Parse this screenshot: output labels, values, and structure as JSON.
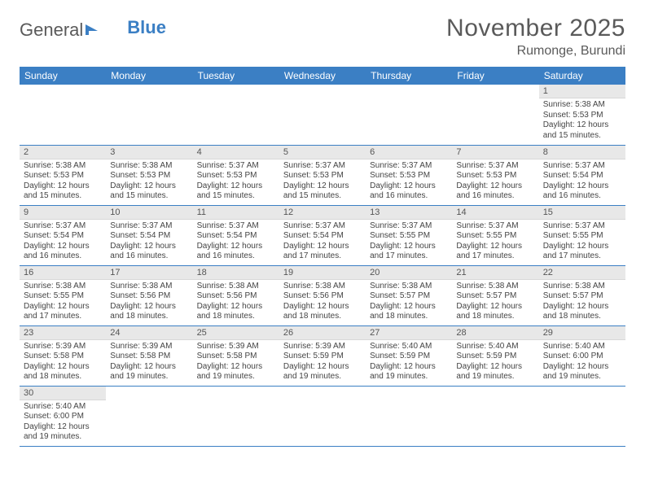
{
  "logo": {
    "text1": "General",
    "text2": "Blue"
  },
  "title": "November 2025",
  "location": "Rumonge, Burundi",
  "colors": {
    "header_bg": "#3b7fc4",
    "header_text": "#ffffff",
    "daynum_bg": "#e8e8e8",
    "border": "#3b7fc4",
    "text": "#444444",
    "title_color": "#5a5a5a"
  },
  "weekdays": [
    "Sunday",
    "Monday",
    "Tuesday",
    "Wednesday",
    "Thursday",
    "Friday",
    "Saturday"
  ],
  "weeks": [
    [
      null,
      null,
      null,
      null,
      null,
      null,
      {
        "n": "1",
        "sr": "5:38 AM",
        "ss": "5:53 PM",
        "dl": "12 hours and 15 minutes."
      }
    ],
    [
      {
        "n": "2",
        "sr": "5:38 AM",
        "ss": "5:53 PM",
        "dl": "12 hours and 15 minutes."
      },
      {
        "n": "3",
        "sr": "5:38 AM",
        "ss": "5:53 PM",
        "dl": "12 hours and 15 minutes."
      },
      {
        "n": "4",
        "sr": "5:37 AM",
        "ss": "5:53 PM",
        "dl": "12 hours and 15 minutes."
      },
      {
        "n": "5",
        "sr": "5:37 AM",
        "ss": "5:53 PM",
        "dl": "12 hours and 15 minutes."
      },
      {
        "n": "6",
        "sr": "5:37 AM",
        "ss": "5:53 PM",
        "dl": "12 hours and 16 minutes."
      },
      {
        "n": "7",
        "sr": "5:37 AM",
        "ss": "5:53 PM",
        "dl": "12 hours and 16 minutes."
      },
      {
        "n": "8",
        "sr": "5:37 AM",
        "ss": "5:54 PM",
        "dl": "12 hours and 16 minutes."
      }
    ],
    [
      {
        "n": "9",
        "sr": "5:37 AM",
        "ss": "5:54 PM",
        "dl": "12 hours and 16 minutes."
      },
      {
        "n": "10",
        "sr": "5:37 AM",
        "ss": "5:54 PM",
        "dl": "12 hours and 16 minutes."
      },
      {
        "n": "11",
        "sr": "5:37 AM",
        "ss": "5:54 PM",
        "dl": "12 hours and 16 minutes."
      },
      {
        "n": "12",
        "sr": "5:37 AM",
        "ss": "5:54 PM",
        "dl": "12 hours and 17 minutes."
      },
      {
        "n": "13",
        "sr": "5:37 AM",
        "ss": "5:55 PM",
        "dl": "12 hours and 17 minutes."
      },
      {
        "n": "14",
        "sr": "5:37 AM",
        "ss": "5:55 PM",
        "dl": "12 hours and 17 minutes."
      },
      {
        "n": "15",
        "sr": "5:37 AM",
        "ss": "5:55 PM",
        "dl": "12 hours and 17 minutes."
      }
    ],
    [
      {
        "n": "16",
        "sr": "5:38 AM",
        "ss": "5:55 PM",
        "dl": "12 hours and 17 minutes."
      },
      {
        "n": "17",
        "sr": "5:38 AM",
        "ss": "5:56 PM",
        "dl": "12 hours and 18 minutes."
      },
      {
        "n": "18",
        "sr": "5:38 AM",
        "ss": "5:56 PM",
        "dl": "12 hours and 18 minutes."
      },
      {
        "n": "19",
        "sr": "5:38 AM",
        "ss": "5:56 PM",
        "dl": "12 hours and 18 minutes."
      },
      {
        "n": "20",
        "sr": "5:38 AM",
        "ss": "5:57 PM",
        "dl": "12 hours and 18 minutes."
      },
      {
        "n": "21",
        "sr": "5:38 AM",
        "ss": "5:57 PM",
        "dl": "12 hours and 18 minutes."
      },
      {
        "n": "22",
        "sr": "5:38 AM",
        "ss": "5:57 PM",
        "dl": "12 hours and 18 minutes."
      }
    ],
    [
      {
        "n": "23",
        "sr": "5:39 AM",
        "ss": "5:58 PM",
        "dl": "12 hours and 18 minutes."
      },
      {
        "n": "24",
        "sr": "5:39 AM",
        "ss": "5:58 PM",
        "dl": "12 hours and 19 minutes."
      },
      {
        "n": "25",
        "sr": "5:39 AM",
        "ss": "5:58 PM",
        "dl": "12 hours and 19 minutes."
      },
      {
        "n": "26",
        "sr": "5:39 AM",
        "ss": "5:59 PM",
        "dl": "12 hours and 19 minutes."
      },
      {
        "n": "27",
        "sr": "5:40 AM",
        "ss": "5:59 PM",
        "dl": "12 hours and 19 minutes."
      },
      {
        "n": "28",
        "sr": "5:40 AM",
        "ss": "5:59 PM",
        "dl": "12 hours and 19 minutes."
      },
      {
        "n": "29",
        "sr": "5:40 AM",
        "ss": "6:00 PM",
        "dl": "12 hours and 19 minutes."
      }
    ],
    [
      {
        "n": "30",
        "sr": "5:40 AM",
        "ss": "6:00 PM",
        "dl": "12 hours and 19 minutes."
      },
      null,
      null,
      null,
      null,
      null,
      null
    ]
  ],
  "labels": {
    "sunrise": "Sunrise:",
    "sunset": "Sunset:",
    "daylight": "Daylight:"
  }
}
